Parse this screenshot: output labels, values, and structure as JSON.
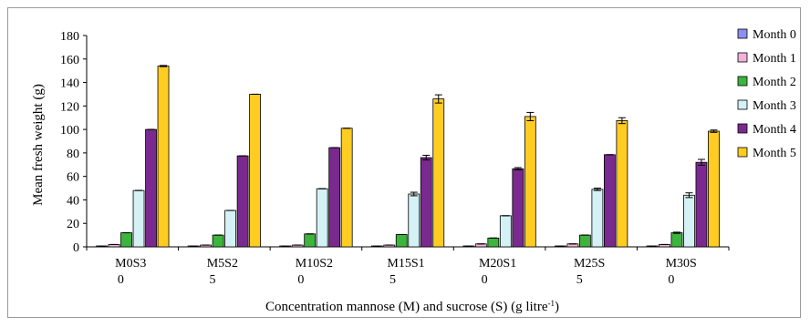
{
  "chart_data": {
    "type": "bar",
    "xlabel": "Concentration mannose (M) and sucrose (S) (g litre",
    "xlabel_superscript": "-1",
    "xlabel_suffix": ")",
    "ylabel": "Mean fresh weight (g)",
    "ylim": [
      0,
      180
    ],
    "yticks": [
      0,
      20,
      40,
      60,
      80,
      100,
      120,
      140,
      160,
      180
    ],
    "categories": [
      {
        "line1": "M0S3",
        "line2": "0"
      },
      {
        "line1": "M5S2",
        "line2": "5"
      },
      {
        "line1": "M10S2",
        "line2": "0"
      },
      {
        "line1": "M15S1",
        "line2": "5"
      },
      {
        "line1": "M20S1",
        "line2": "0"
      },
      {
        "line1": "M25S",
        "line2": "5"
      },
      {
        "line1": "M30S",
        "line2": "0"
      }
    ],
    "series": [
      {
        "name": "Month 0",
        "color": "#8c8ff0",
        "values": [
          0.5,
          0.5,
          0.5,
          0.5,
          0.5,
          0.5,
          0.5
        ],
        "errors": [
          0,
          0,
          0,
          0,
          0,
          0,
          0
        ]
      },
      {
        "name": "Month 1",
        "color": "#f2b3d8",
        "values": [
          2,
          1.5,
          1.5,
          1.5,
          2.5,
          2.5,
          2
        ],
        "errors": [
          0,
          0,
          0,
          0,
          0,
          0,
          0
        ]
      },
      {
        "name": "Month 2",
        "color": "#3db43d",
        "values": [
          12,
          10,
          11,
          10.5,
          7.5,
          10,
          12
        ],
        "errors": [
          0,
          0,
          0,
          0,
          0,
          0,
          0.5
        ]
      },
      {
        "name": "Month 3",
        "color": "#d4f1f6",
        "values": [
          48,
          31,
          49.5,
          45,
          26.5,
          49,
          44
        ],
        "errors": [
          0,
          0,
          0,
          1.5,
          0,
          1,
          2
        ]
      },
      {
        "name": "Month 4",
        "color": "#7a2a8f",
        "values": [
          100,
          77.5,
          84.5,
          76,
          66.5,
          78.5,
          72
        ],
        "errors": [
          0,
          0,
          0,
          2,
          1,
          0,
          2.5
        ]
      },
      {
        "name": "Month 5",
        "color": "#ffcc22",
        "values": [
          154,
          130,
          101,
          126,
          111,
          107.5,
          98.5
        ],
        "errors": [
          0.5,
          0,
          0,
          3.5,
          3.5,
          2.5,
          1
        ]
      }
    ],
    "legend_position": "right",
    "grid": false
  }
}
